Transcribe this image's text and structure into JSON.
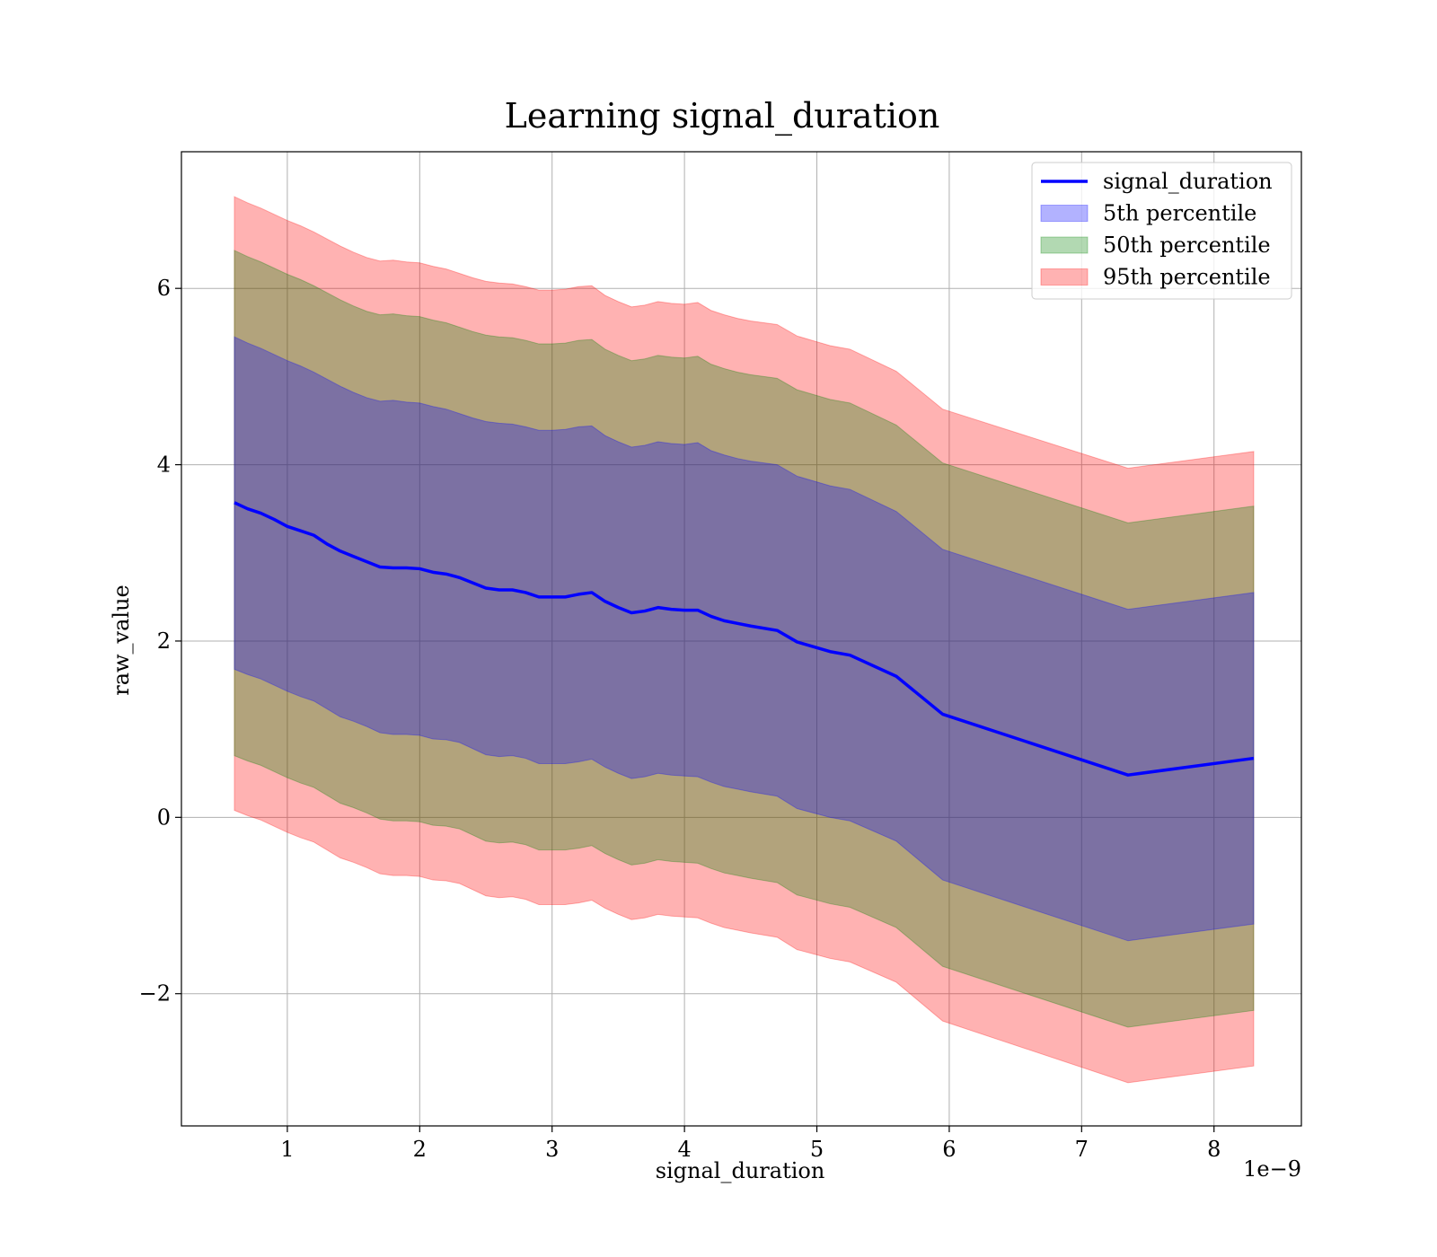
{
  "chart_data": {
    "type": "area",
    "title": "Learning signal_duration",
    "xlabel": "signal_duration",
    "ylabel": "raw_value",
    "x_offset_text": "1e−9",
    "xlim": [
      0.2,
      8.66
    ],
    "ylim": [
      -3.5,
      7.55
    ],
    "x_ticks": [
      1,
      2,
      3,
      4,
      5,
      6,
      7,
      8
    ],
    "x_tick_labels": [
      "1",
      "2",
      "3",
      "4",
      "5",
      "6",
      "7",
      "8"
    ],
    "y_ticks": [
      -2,
      0,
      2,
      4,
      6
    ],
    "y_tick_labels": [
      "−2",
      "0",
      "2",
      "4",
      "6"
    ],
    "grid": true,
    "legend_position": "top-right",
    "x": [
      0.6,
      0.7,
      0.8,
      0.9,
      1.0,
      1.1,
      1.2,
      1.3,
      1.4,
      1.5,
      1.6,
      1.7,
      1.8,
      1.9,
      2.0,
      2.1,
      2.2,
      2.3,
      2.4,
      2.5,
      2.6,
      2.7,
      2.8,
      2.9,
      3.0,
      3.1,
      3.2,
      3.3,
      3.4,
      3.5,
      3.6,
      3.7,
      3.8,
      3.9,
      4.0,
      4.1,
      4.2,
      4.3,
      4.4,
      4.5,
      4.7,
      4.85,
      5.1,
      5.25,
      5.6,
      5.95,
      7.35,
      8.3
    ],
    "series": [
      {
        "name": "signal_duration",
        "kind": "line",
        "color": "#0000ff",
        "values": [
          3.57,
          3.5,
          3.45,
          3.38,
          3.3,
          3.25,
          3.2,
          3.1,
          3.02,
          2.96,
          2.9,
          2.84,
          2.83,
          2.83,
          2.82,
          2.78,
          2.76,
          2.72,
          2.66,
          2.6,
          2.58,
          2.58,
          2.55,
          2.5,
          2.5,
          2.5,
          2.53,
          2.55,
          2.45,
          2.38,
          2.32,
          2.34,
          2.38,
          2.36,
          2.35,
          2.35,
          2.28,
          2.23,
          2.2,
          2.17,
          2.12,
          1.99,
          1.88,
          1.84,
          1.6,
          1.17,
          0.48,
          0.67
        ]
      },
      {
        "name": "5th percentile",
        "kind": "band",
        "color": "#0000ff",
        "upper": [
          5.45,
          5.38,
          5.32,
          5.25,
          5.18,
          5.12,
          5.05,
          4.97,
          4.89,
          4.82,
          4.76,
          4.72,
          4.73,
          4.71,
          4.7,
          4.66,
          4.63,
          4.58,
          4.53,
          4.49,
          4.47,
          4.46,
          4.43,
          4.39,
          4.39,
          4.4,
          4.43,
          4.44,
          4.33,
          4.26,
          4.2,
          4.22,
          4.26,
          4.24,
          4.23,
          4.25,
          4.16,
          4.11,
          4.07,
          4.04,
          4.0,
          3.87,
          3.76,
          3.72,
          3.47,
          3.04,
          2.36,
          2.55
        ],
        "lower": [
          1.68,
          1.62,
          1.57,
          1.5,
          1.43,
          1.37,
          1.32,
          1.23,
          1.14,
          1.09,
          1.03,
          0.96,
          0.94,
          0.94,
          0.93,
          0.89,
          0.88,
          0.85,
          0.78,
          0.71,
          0.69,
          0.7,
          0.67,
          0.61,
          0.61,
          0.61,
          0.63,
          0.66,
          0.57,
          0.5,
          0.44,
          0.46,
          0.5,
          0.48,
          0.47,
          0.46,
          0.4,
          0.35,
          0.32,
          0.29,
          0.24,
          0.1,
          0.0,
          -0.04,
          -0.27,
          -0.71,
          -1.4,
          -1.21
        ]
      },
      {
        "name": "50th percentile",
        "kind": "band",
        "color": "#008000",
        "upper": [
          6.43,
          6.36,
          6.3,
          6.23,
          6.16,
          6.1,
          6.03,
          5.95,
          5.87,
          5.8,
          5.74,
          5.7,
          5.71,
          5.69,
          5.68,
          5.64,
          5.61,
          5.56,
          5.51,
          5.47,
          5.45,
          5.44,
          5.41,
          5.37,
          5.37,
          5.38,
          5.41,
          5.42,
          5.31,
          5.24,
          5.18,
          5.2,
          5.24,
          5.22,
          5.21,
          5.23,
          5.14,
          5.09,
          5.05,
          5.02,
          4.98,
          4.85,
          4.74,
          4.7,
          4.45,
          4.02,
          3.34,
          3.53
        ],
        "lower": [
          0.7,
          0.64,
          0.59,
          0.52,
          0.45,
          0.39,
          0.34,
          0.25,
          0.16,
          0.11,
          0.05,
          -0.02,
          -0.04,
          -0.04,
          -0.05,
          -0.09,
          -0.1,
          -0.13,
          -0.2,
          -0.27,
          -0.29,
          -0.28,
          -0.31,
          -0.37,
          -0.37,
          -0.37,
          -0.35,
          -0.32,
          -0.41,
          -0.48,
          -0.54,
          -0.52,
          -0.48,
          -0.5,
          -0.51,
          -0.52,
          -0.58,
          -0.63,
          -0.66,
          -0.69,
          -0.74,
          -0.88,
          -0.98,
          -1.02,
          -1.25,
          -1.69,
          -2.38,
          -2.19
        ]
      },
      {
        "name": "95th percentile",
        "kind": "band",
        "color": "#ff0000",
        "upper": [
          7.04,
          6.97,
          6.91,
          6.84,
          6.77,
          6.71,
          6.64,
          6.56,
          6.48,
          6.41,
          6.35,
          6.31,
          6.32,
          6.3,
          6.29,
          6.25,
          6.22,
          6.17,
          6.12,
          6.08,
          6.06,
          6.05,
          6.02,
          5.98,
          5.98,
          5.99,
          6.02,
          6.03,
          5.92,
          5.85,
          5.79,
          5.81,
          5.85,
          5.83,
          5.82,
          5.84,
          5.75,
          5.7,
          5.66,
          5.63,
          5.59,
          5.46,
          5.35,
          5.31,
          5.06,
          4.63,
          3.96,
          4.15
        ],
        "lower": [
          0.08,
          0.02,
          -0.03,
          -0.1,
          -0.17,
          -0.23,
          -0.28,
          -0.37,
          -0.46,
          -0.51,
          -0.57,
          -0.64,
          -0.66,
          -0.66,
          -0.67,
          -0.71,
          -0.72,
          -0.75,
          -0.82,
          -0.89,
          -0.91,
          -0.9,
          -0.93,
          -0.99,
          -0.99,
          -0.99,
          -0.97,
          -0.94,
          -1.03,
          -1.1,
          -1.16,
          -1.14,
          -1.1,
          -1.12,
          -1.13,
          -1.14,
          -1.2,
          -1.25,
          -1.28,
          -1.31,
          -1.36,
          -1.5,
          -1.6,
          -1.64,
          -1.87,
          -2.31,
          -3.01,
          -2.82
        ]
      }
    ]
  }
}
